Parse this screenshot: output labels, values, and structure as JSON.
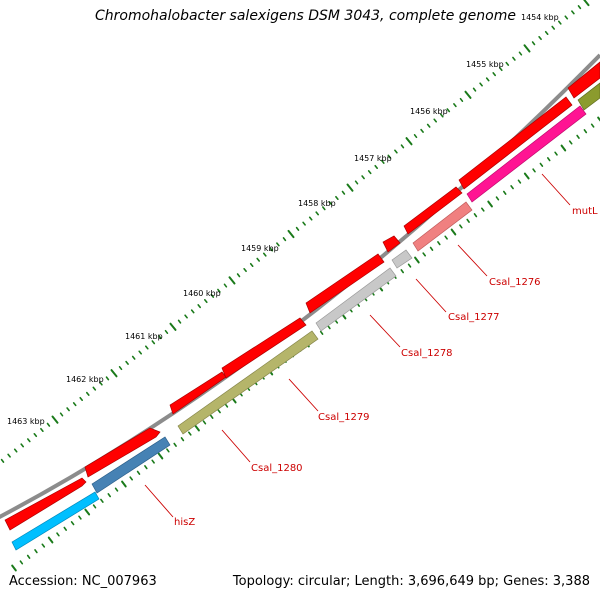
{
  "title": "Chromohalobacter salexigens DSM 3043, complete genome",
  "accession": "Accession: NC_007963",
  "summary": "Topology: circular; Length: 3,696,649 bp; Genes: 3,388",
  "kbp_ticks": [
    "1454 kbp",
    "1455 kbp",
    "1456 kbp",
    "1457 kbp",
    "1458 kbp",
    "1459 kbp",
    "1460 kbp",
    "1461 kbp",
    "1462 kbp",
    "1463 kbp"
  ],
  "gene_labels": [
    "mutL",
    "Csal_1276",
    "Csal_1277",
    "Csal_1278",
    "Csal_1279",
    "Csal_1280",
    "hisZ"
  ],
  "colors": {
    "backbone": "#8c8c8c",
    "cds": "#ff0000",
    "tick": "#1a7a1a",
    "label": "#cc0000"
  },
  "genes": [
    {
      "name": "mutL",
      "color": "#ff1493"
    },
    {
      "name": "Csal_1276",
      "color": "#f08080"
    },
    {
      "name": "Csal_1277",
      "color": "#c0c0c0"
    },
    {
      "name": "Csal_1278",
      "color": "#c0c0c0"
    },
    {
      "name": "Csal_1279",
      "color": "#b5b56a"
    },
    {
      "name": "Csal_1280",
      "color": "#4682b4"
    },
    {
      "name": "hisZ",
      "color": "#00bfff"
    },
    {
      "name": "",
      "color": "#8b9b2e"
    }
  ]
}
